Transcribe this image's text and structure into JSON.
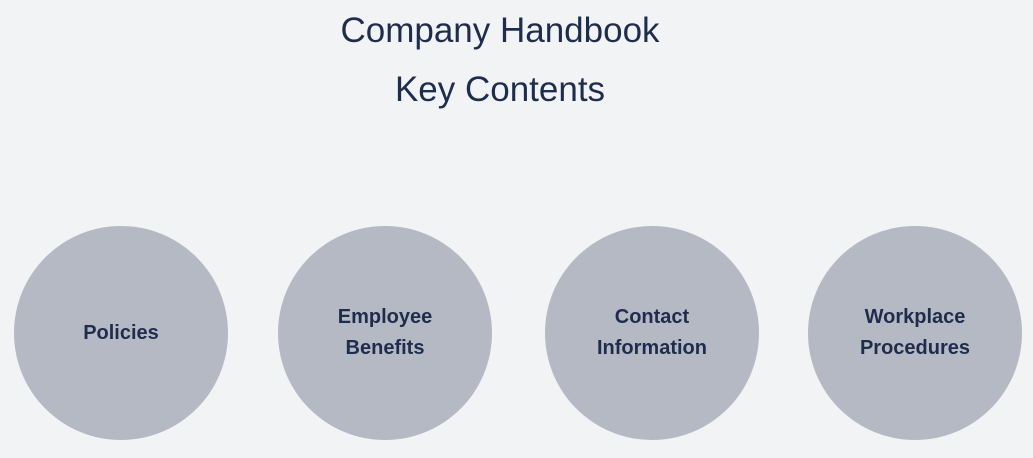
{
  "title": {
    "line1": "Company Handbook",
    "line2": "Key Contents"
  },
  "nodes": [
    {
      "label": "Policies"
    },
    {
      "label": "Employee\nBenefits"
    },
    {
      "label": "Contact\nInformation"
    },
    {
      "label": "Workplace\nProcedures"
    }
  ],
  "colors": {
    "background": "#f2f3f5",
    "circle_fill": "#b5b9c4",
    "text": "#1f2d4d"
  }
}
